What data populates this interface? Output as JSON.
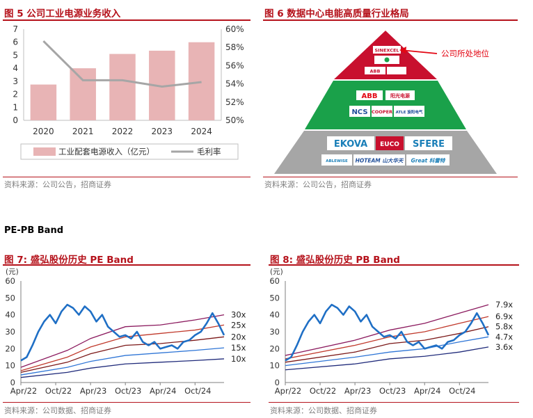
{
  "fig5": {
    "title": "图 5  公司工业电源业务收入",
    "source": "资料来源：公司公告，招商证券"
  },
  "fig6": {
    "title": "图 6  数据中心电能高质量行业格局",
    "source": "资料来源：公司公告，招商证券",
    "annotation": "公司所处地位",
    "tier1_logos": [
      "SINEXCEL",
      "",
      "ABB"
    ],
    "tier2_logos": [
      "ABB",
      "阳光电源",
      "NCS",
      "COOPER",
      "ATLE 旋阳电气"
    ],
    "tier3_logos": [
      "EKOVA",
      "EUCO",
      "SFERE",
      "ABLEWISE",
      "HOTEAM 山大华天",
      "Great 科雷特"
    ]
  },
  "section_heading": "PE-PB Band",
  "fig7": {
    "title": "图 7:  盛弘股份历史 PE Band",
    "source": "资料来源：公司数据、招商证券"
  },
  "fig8": {
    "title": "图 8:  盛弘股份历史 PB Band",
    "source": "资料来源：公司数据、招商证券"
  },
  "colors": {
    "accent": "#b5121b",
    "bar": "#e8b4b5",
    "margin_line": "#a6a6a6",
    "price": "#1f6fc5"
  },
  "chart_data": [
    {
      "id": "fig5",
      "type": "bar",
      "categories": [
        "2020",
        "2021",
        "2022",
        "2023",
        "2024"
      ],
      "series": [
        {
          "name": "工业配套电源收入（亿元）",
          "type": "bar",
          "axis": "left",
          "values": [
            2.75,
            4.0,
            5.1,
            5.35,
            6.0
          ]
        },
        {
          "name": "毛利率",
          "type": "line",
          "axis": "right",
          "values": [
            58.7,
            54.4,
            54.4,
            53.7,
            54.2
          ]
        }
      ],
      "ylim": [
        0,
        7
      ],
      "yticks": [
        0,
        1,
        2,
        3,
        4,
        5,
        6,
        7
      ],
      "y2lim": [
        50,
        60
      ],
      "y2ticks": [
        "50%",
        "52%",
        "54%",
        "56%",
        "58%",
        "60%"
      ],
      "legend": "bottom"
    },
    {
      "id": "fig7",
      "type": "line",
      "yunit": "(元)",
      "ylim": [
        0,
        60
      ],
      "yticks": [
        0,
        10,
        20,
        30,
        40,
        50,
        60
      ],
      "xlim": [
        "2022-04",
        "2025-03"
      ],
      "xticks": [
        "Apr/22",
        "Oct/22",
        "Apr/23",
        "Oct/23",
        "Apr/24",
        "Oct/24"
      ],
      "price": [
        [
          "2022-04",
          13
        ],
        [
          "2022-05",
          15
        ],
        [
          "2022-06",
          22
        ],
        [
          "2022-07",
          30
        ],
        [
          "2022-08",
          36
        ],
        [
          "2022-09",
          40
        ],
        [
          "2022-10",
          35
        ],
        [
          "2022-11",
          42
        ],
        [
          "2022-12",
          46
        ],
        [
          "2023-01",
          44
        ],
        [
          "2023-02",
          40
        ],
        [
          "2023-03",
          45
        ],
        [
          "2023-04",
          42
        ],
        [
          "2023-05",
          36
        ],
        [
          "2023-06",
          40
        ],
        [
          "2023-07",
          33
        ],
        [
          "2023-08",
          30
        ],
        [
          "2023-09",
          27
        ],
        [
          "2023-10",
          28
        ],
        [
          "2023-11",
          26
        ],
        [
          "2023-12",
          30
        ],
        [
          "2024-01",
          24
        ],
        [
          "2024-02",
          22
        ],
        [
          "2024-03",
          24
        ],
        [
          "2024-04",
          20
        ],
        [
          "2024-05",
          21
        ],
        [
          "2024-06",
          22
        ],
        [
          "2024-07",
          20
        ],
        [
          "2024-08",
          24
        ],
        [
          "2024-09",
          25
        ],
        [
          "2024-10",
          28
        ],
        [
          "2024-11",
          30
        ],
        [
          "2024-12",
          35
        ],
        [
          "2025-01",
          41
        ],
        [
          "2025-02",
          35
        ],
        [
          "2025-03",
          28
        ]
      ],
      "bands": [
        {
          "name": "30x",
          "color": "#8b1a5e",
          "values": [
            [
              "2022-04",
              9
            ],
            [
              "2022-12",
              19
            ],
            [
              "2023-04",
              26
            ],
            [
              "2023-10",
              33
            ],
            [
              "2024-04",
              34
            ],
            [
              "2024-10",
              37
            ],
            [
              "2025-03",
              40
            ]
          ]
        },
        {
          "name": "25x",
          "color": "#c0392b",
          "values": [
            [
              "2022-04",
              7
            ],
            [
              "2022-12",
              15
            ],
            [
              "2023-04",
              21
            ],
            [
              "2023-10",
              27
            ],
            [
              "2024-04",
              29
            ],
            [
              "2024-10",
              31
            ],
            [
              "2025-03",
              34
            ]
          ]
        },
        {
          "name": "20x",
          "color": "#7b1818",
          "values": [
            [
              "2022-04",
              6
            ],
            [
              "2022-12",
              12
            ],
            [
              "2023-04",
              17
            ],
            [
              "2023-10",
              22
            ],
            [
              "2024-04",
              23
            ],
            [
              "2024-10",
              25
            ],
            [
              "2025-03",
              27
            ]
          ]
        },
        {
          "name": "15x",
          "color": "#2e75d6",
          "values": [
            [
              "2022-04",
              4.5
            ],
            [
              "2022-12",
              9
            ],
            [
              "2023-04",
              12.5
            ],
            [
              "2023-10",
              16
            ],
            [
              "2024-04",
              17.5
            ],
            [
              "2024-10",
              19
            ],
            [
              "2025-03",
              20.5
            ]
          ]
        },
        {
          "name": "10x",
          "color": "#1f2a7a",
          "values": [
            [
              "2022-04",
              3
            ],
            [
              "2022-12",
              6
            ],
            [
              "2023-04",
              8.5
            ],
            [
              "2023-10",
              11
            ],
            [
              "2024-04",
              12
            ],
            [
              "2024-10",
              13
            ],
            [
              "2025-03",
              14
            ]
          ]
        }
      ]
    },
    {
      "id": "fig8",
      "type": "line",
      "yunit": "(元)",
      "ylim": [
        0,
        60
      ],
      "yticks": [
        0,
        10,
        20,
        30,
        40,
        50,
        60
      ],
      "xlim": [
        "2022-04",
        "2025-03"
      ],
      "xticks": [
        "Apr/22",
        "Oct/22",
        "Apr/23",
        "Oct/23",
        "Apr/24",
        "Oct/24"
      ],
      "price": [
        [
          "2022-04",
          13
        ],
        [
          "2022-05",
          15
        ],
        [
          "2022-06",
          22
        ],
        [
          "2022-07",
          30
        ],
        [
          "2022-08",
          36
        ],
        [
          "2022-09",
          40
        ],
        [
          "2022-10",
          35
        ],
        [
          "2022-11",
          42
        ],
        [
          "2022-12",
          46
        ],
        [
          "2023-01",
          44
        ],
        [
          "2023-02",
          40
        ],
        [
          "2023-03",
          45
        ],
        [
          "2023-04",
          42
        ],
        [
          "2023-05",
          36
        ],
        [
          "2023-06",
          40
        ],
        [
          "2023-07",
          33
        ],
        [
          "2023-08",
          30
        ],
        [
          "2023-09",
          27
        ],
        [
          "2023-10",
          28
        ],
        [
          "2023-11",
          26
        ],
        [
          "2023-12",
          30
        ],
        [
          "2024-01",
          24
        ],
        [
          "2024-02",
          22
        ],
        [
          "2024-03",
          24
        ],
        [
          "2024-04",
          20
        ],
        [
          "2024-05",
          21
        ],
        [
          "2024-06",
          22
        ],
        [
          "2024-07",
          20
        ],
        [
          "2024-08",
          24
        ],
        [
          "2024-09",
          25
        ],
        [
          "2024-10",
          28
        ],
        [
          "2024-11",
          30
        ],
        [
          "2024-12",
          35
        ],
        [
          "2025-01",
          41
        ],
        [
          "2025-02",
          35
        ],
        [
          "2025-03",
          28
        ]
      ],
      "bands": [
        {
          "name": "7.9x",
          "color": "#8b1a5e",
          "values": [
            [
              "2022-04",
              16
            ],
            [
              "2023-04",
              25
            ],
            [
              "2023-10",
              31
            ],
            [
              "2024-04",
              35
            ],
            [
              "2024-10",
              41
            ],
            [
              "2025-03",
              46
            ]
          ]
        },
        {
          "name": "6.9x",
          "color": "#c0392b",
          "values": [
            [
              "2022-04",
              14
            ],
            [
              "2023-04",
              22
            ],
            [
              "2023-10",
              27
            ],
            [
              "2024-04",
              30
            ],
            [
              "2024-10",
              35
            ],
            [
              "2025-03",
              39
            ]
          ]
        },
        {
          "name": "5.8x",
          "color": "#7b1818",
          "values": [
            [
              "2022-04",
              12
            ],
            [
              "2023-04",
              18
            ],
            [
              "2023-10",
              23
            ],
            [
              "2024-04",
              25
            ],
            [
              "2024-10",
              29
            ],
            [
              "2025-03",
              33
            ]
          ]
        },
        {
          "name": "4.7x",
          "color": "#2e75d6",
          "values": [
            [
              "2022-04",
              10
            ],
            [
              "2023-04",
              15
            ],
            [
              "2023-10",
              18
            ],
            [
              "2024-04",
              20
            ],
            [
              "2024-10",
              24
            ],
            [
              "2025-03",
              27
            ]
          ]
        },
        {
          "name": "3.6x",
          "color": "#1f2a7a",
          "values": [
            [
              "2022-04",
              7.5
            ],
            [
              "2023-04",
              11
            ],
            [
              "2023-10",
              14
            ],
            [
              "2024-04",
              15.5
            ],
            [
              "2024-10",
              18
            ],
            [
              "2025-03",
              21
            ]
          ]
        }
      ]
    }
  ]
}
